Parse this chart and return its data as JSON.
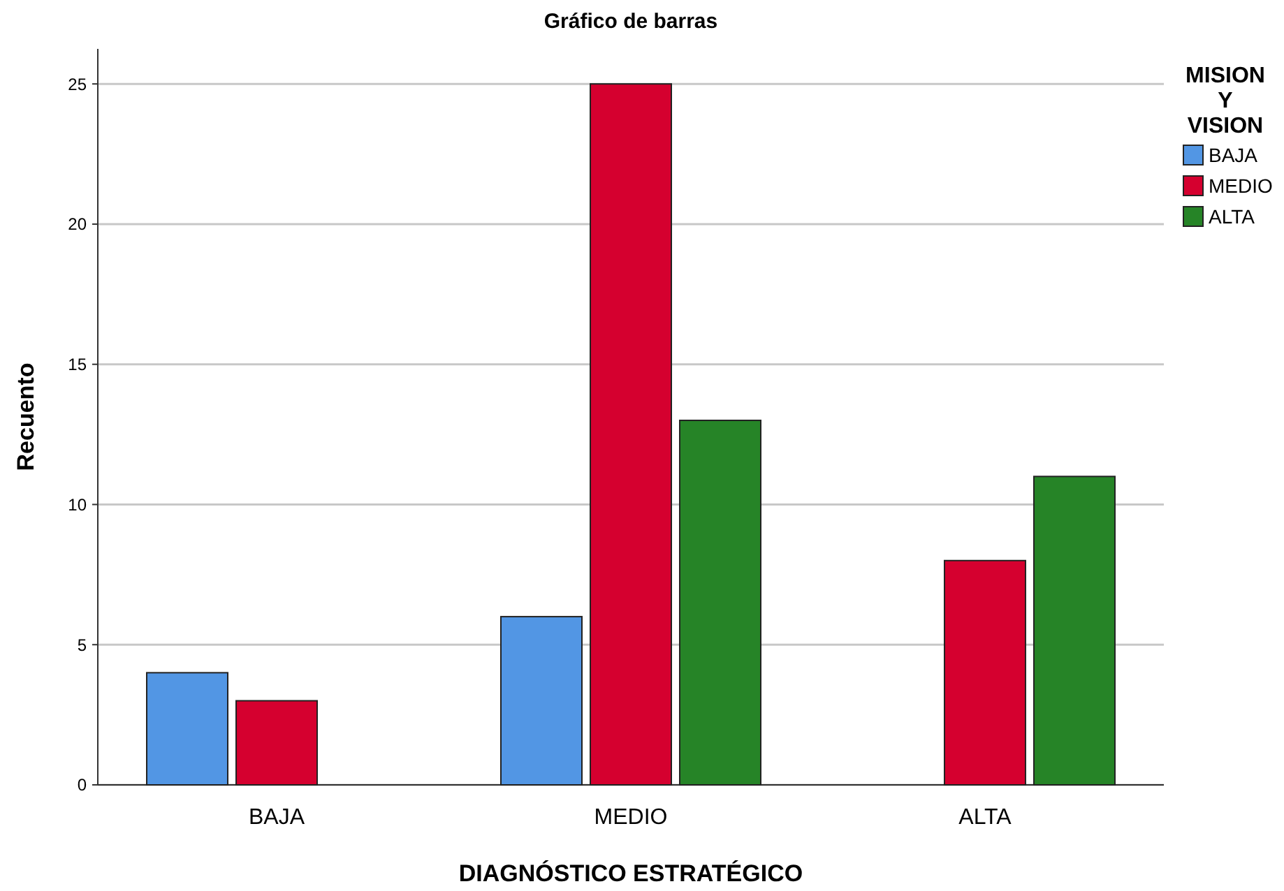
{
  "chart_data": {
    "type": "bar",
    "title": "Gráfico de barras",
    "xlabel": "DIAGNÓSTICO ESTRATÉGICO",
    "ylabel": "Recuento",
    "legend_title": "MISION Y VISION",
    "categories": [
      "BAJA",
      "MEDIO",
      "ALTA"
    ],
    "series": [
      {
        "name": "BAJA",
        "color": "#5296e4",
        "values": [
          4,
          6,
          null
        ]
      },
      {
        "name": "MEDIO",
        "color": "#d5002f",
        "values": [
          3,
          25,
          8
        ]
      },
      {
        "name": "ALTA",
        "color": "#268427",
        "values": [
          null,
          13,
          11
        ]
      }
    ],
    "ylim": [
      0,
      26.25
    ],
    "yticks": [
      0,
      5,
      10,
      15,
      20,
      25
    ],
    "grid": "y",
    "legend": "top right"
  }
}
